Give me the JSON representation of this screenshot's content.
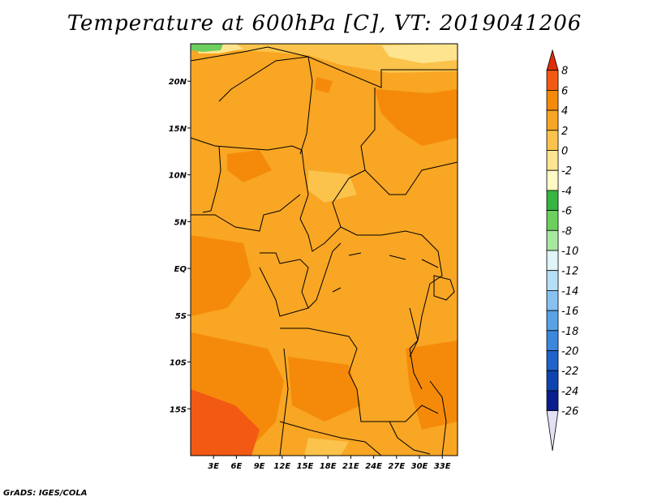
{
  "title": "Temperature at 600hPa [C], VT: 2019041206",
  "credit": "GrADS: IGES/COLA",
  "map": {
    "lon_range": [
      0,
      35
    ],
    "lat_range": [
      -20,
      24
    ],
    "x_ticks": [
      {
        "value": 3,
        "label": "3E"
      },
      {
        "value": 6,
        "label": "6E"
      },
      {
        "value": 9,
        "label": "9E"
      },
      {
        "value": 12,
        "label": "12E"
      },
      {
        "value": 15,
        "label": "15E"
      },
      {
        "value": 18,
        "label": "18E"
      },
      {
        "value": 21,
        "label": "21E"
      },
      {
        "value": 24,
        "label": "24E"
      },
      {
        "value": 27,
        "label": "27E"
      },
      {
        "value": 30,
        "label": "30E"
      },
      {
        "value": 33,
        "label": "33E"
      }
    ],
    "y_ticks": [
      {
        "value": 20,
        "label": "20N"
      },
      {
        "value": 15,
        "label": "15N"
      },
      {
        "value": 10,
        "label": "10N"
      },
      {
        "value": 5,
        "label": "5N"
      },
      {
        "value": 0,
        "label": "EQ"
      },
      {
        "value": -5,
        "label": "5S"
      },
      {
        "value": -10,
        "label": "10S"
      },
      {
        "value": -15,
        "label": "15S"
      }
    ]
  },
  "colorbar": {
    "labels": [
      "8",
      "6",
      "4",
      "2",
      "0",
      "-2",
      "-4",
      "-6",
      "-8",
      "-10",
      "-12",
      "-14",
      "-16",
      "-18",
      "-20",
      "-22",
      "-24",
      "-26"
    ],
    "colors": [
      "#dd2c0a",
      "#f25a14",
      "#f58a0a",
      "#f8a623",
      "#fbc34b",
      "#fee48f",
      "#fef9c5",
      "#37b442",
      "#6dcf5e",
      "#a8e7a0",
      "#dff5f8",
      "#b6def7",
      "#88c1f0",
      "#5aa2e6",
      "#3b87dc",
      "#1e62cc",
      "#0f44b0",
      "#0a1d8c",
      "#e4e0f4"
    ]
  }
}
